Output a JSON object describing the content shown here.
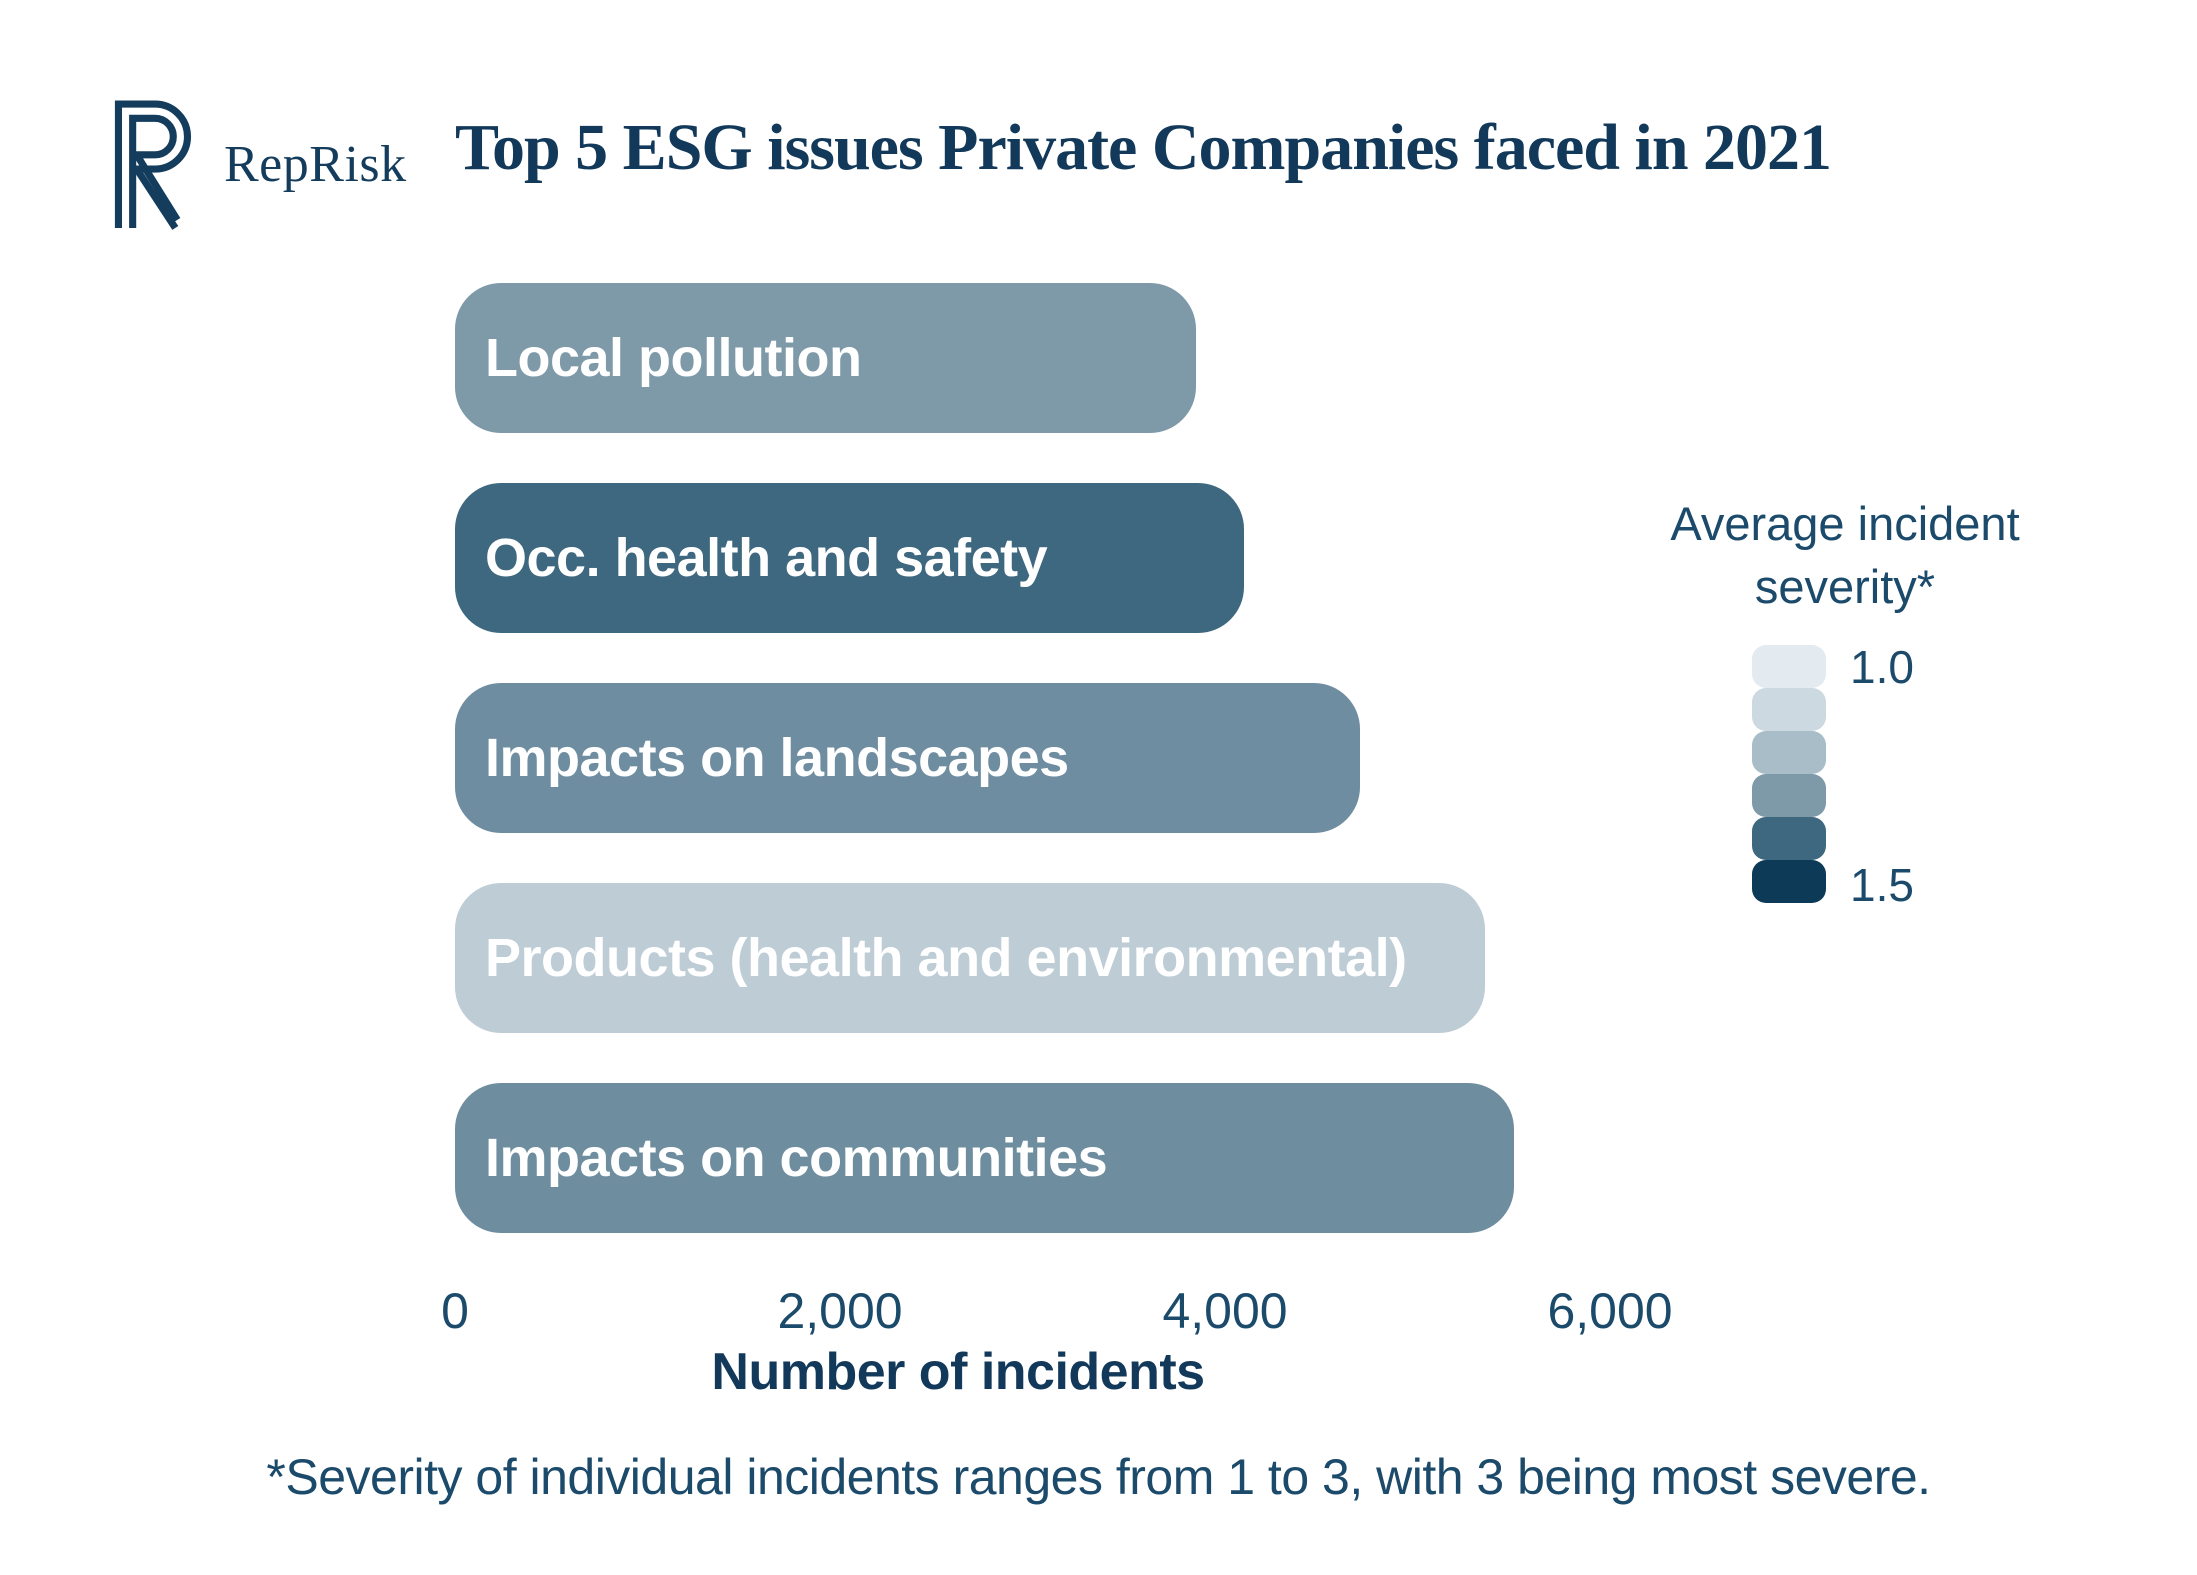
{
  "brand": {
    "name": "RepRisk"
  },
  "title": "Top 5 ESG issues Private Companies faced in 2021",
  "chart_data": {
    "type": "bar",
    "orientation": "horizontal",
    "title": "Top 5 ESG issues Private Companies faced in 2021",
    "categories": [
      "Local pollution",
      "Occ. health and safety",
      "Impacts on landscapes",
      "Products (health and environmental)",
      "Impacts on communities"
    ],
    "values": [
      3850,
      4100,
      4700,
      5350,
      5500
    ],
    "bar_colors": [
      "#7E99A8",
      "#3E687F",
      "#6E8DA0",
      "#BDCCD5",
      "#6E8D9F"
    ],
    "xlabel": "Number of incidents",
    "x_ticks": [
      "0",
      "2,000",
      "4,000",
      "6,000"
    ],
    "x_tick_values": [
      0,
      2000,
      4000,
      6000
    ],
    "xlim": [
      0,
      6000
    ],
    "grid": false,
    "legend": {
      "position": "right",
      "title": "Average incident severity*",
      "min_label": "1.0",
      "max_label": "1.5",
      "swatches": [
        "#E3EAF0",
        "#CDD9E0",
        "#A9BDC8",
        "#7E99A8",
        "#3E687F",
        "#0D3A57"
      ]
    }
  },
  "footnote": "*Severity of individual incidents ranges from 1 to 3, with 3 being most severe.",
  "colors": {
    "title_text": "#12395A",
    "axis_text": "#1B4A6B",
    "brand_navy": "#143C5C",
    "background": "#FFFFFF"
  }
}
